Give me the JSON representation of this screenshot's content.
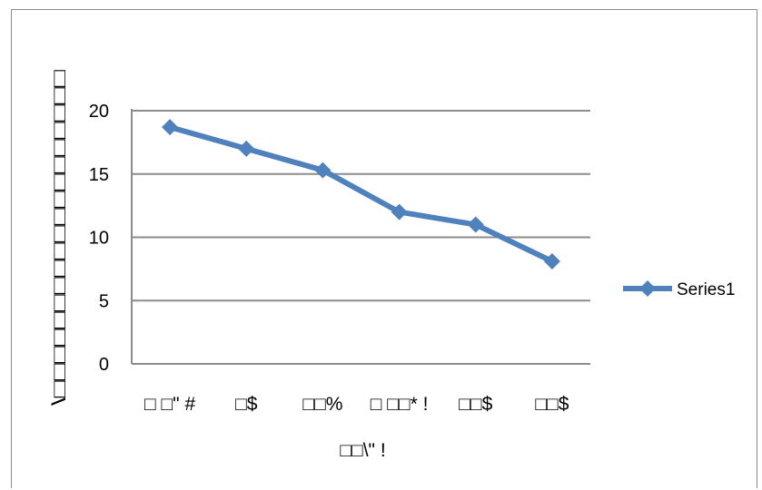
{
  "chart_data": {
    "type": "line",
    "categories": [
      "□ □\" #",
      "□$",
      "□□%",
      "□ □□* !",
      "□□$",
      "□□$"
    ],
    "series": [
      {
        "name": "Series1",
        "values": [
          18.7,
          17.0,
          15.3,
          12.0,
          11.0,
          8.1
        ],
        "color": "#4f81bd"
      }
    ],
    "yticks": [
      0,
      5,
      10,
      15,
      20
    ],
    "ylim": [
      0,
      20
    ],
    "xlabel": "□□\\\" !",
    "ylabel": "\\□□□□□□□□□□□□□□□□□□□",
    "grid": true,
    "legend_position": "right",
    "title": ""
  }
}
